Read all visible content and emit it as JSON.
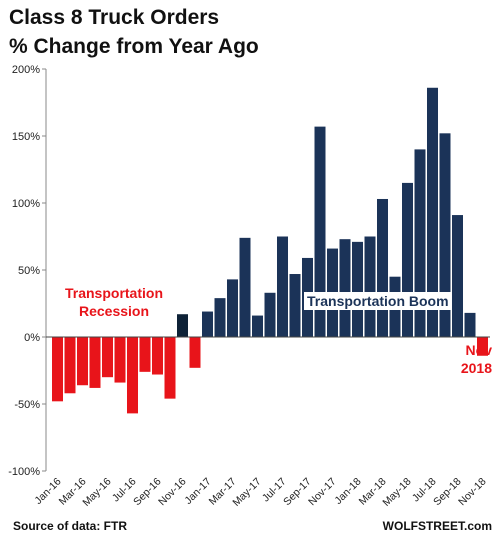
{
  "chart_data": {
    "type": "bar",
    "title": "Class 8 Truck Orders",
    "subtitle": "% Change from Year Ago",
    "categories": [
      "Jan-16",
      "Feb-16",
      "Mar-16",
      "Apr-16",
      "May-16",
      "Jun-16",
      "Jul-16",
      "Aug-16",
      "Sep-16",
      "Oct-16",
      "Nov-16",
      "Dec-16",
      "Jan-17",
      "Feb-17",
      "Mar-17",
      "Apr-17",
      "May-17",
      "Jun-17",
      "Jul-17",
      "Aug-17",
      "Sep-17",
      "Oct-17",
      "Nov-17",
      "Dec-17",
      "Jan-18",
      "Feb-18",
      "Mar-18",
      "Apr-18",
      "May-18",
      "Jun-18",
      "Jul-18",
      "Aug-18",
      "Sep-18",
      "Oct-18",
      "Nov-18"
    ],
    "tick_labels": [
      "Jan-16",
      "Mar-16",
      "May-16",
      "Jul-16",
      "Sep-16",
      "Nov-16",
      "Jan-17",
      "Mar-17",
      "May-17",
      "Jul-17",
      "Sep-17",
      "Nov-17",
      "Jan-18",
      "Mar-18",
      "May-18",
      "Jul-18",
      "Sep-18",
      "Nov-18"
    ],
    "values": [
      -48,
      -42,
      -36,
      -38,
      -30,
      -34,
      -57,
      -26,
      -28,
      -46,
      17,
      -23,
      19,
      29,
      43,
      74,
      16,
      33,
      75,
      47,
      59,
      157,
      66,
      73,
      71,
      75,
      103,
      45,
      115,
      140,
      186,
      152,
      91,
      18,
      -14
    ],
    "ylim": [
      -100,
      200
    ],
    "yticks": [
      -100,
      -50,
      0,
      50,
      100,
      150,
      200
    ],
    "ytick_labels": [
      "-100%",
      "-50%",
      "0%",
      "50%",
      "100%",
      "150%",
      "200%"
    ],
    "xlabel": "",
    "ylabel": "",
    "grid": false,
    "colors": {
      "negative": "#e8141a",
      "positive": "#1b3358",
      "nov16": "#0e2237"
    }
  },
  "annotations": {
    "recession": "Transportation Recession",
    "boom": "Transportation Boom",
    "nov_line1": "Nov",
    "nov_line2": "2018"
  },
  "footer": {
    "source": "Source of data: FTR",
    "brand": "WOLFSTREET.com"
  }
}
